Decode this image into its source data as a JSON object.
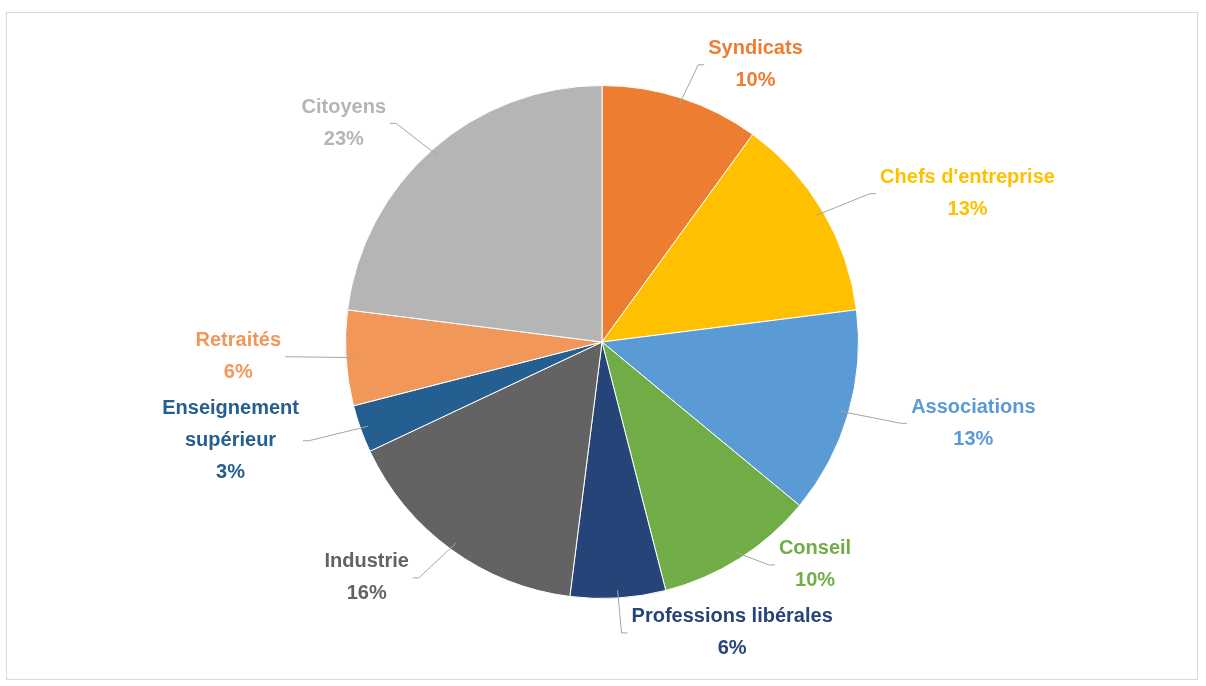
{
  "chart_data": {
    "type": "pie",
    "categories": [
      "Syndicats",
      "Chefs d'entreprise",
      "Associations",
      "Conseil",
      "Professions libérales",
      "Industrie",
      "Enseignement supérieur",
      "Retraités",
      "Citoyens"
    ],
    "values": [
      10,
      13,
      13,
      10,
      6,
      16,
      3,
      6,
      23
    ],
    "value_labels": [
      "10%",
      "13%",
      "13%",
      "10%",
      "6%",
      "16%",
      "3%",
      "6%",
      "23%"
    ],
    "colors": [
      "#ed7d31",
      "#ffc000",
      "#5b9bd5",
      "#70ad47",
      "#264478",
      "#636363",
      "#255e91",
      "#f1975a",
      "#b5b5b5"
    ],
    "legend": false
  }
}
